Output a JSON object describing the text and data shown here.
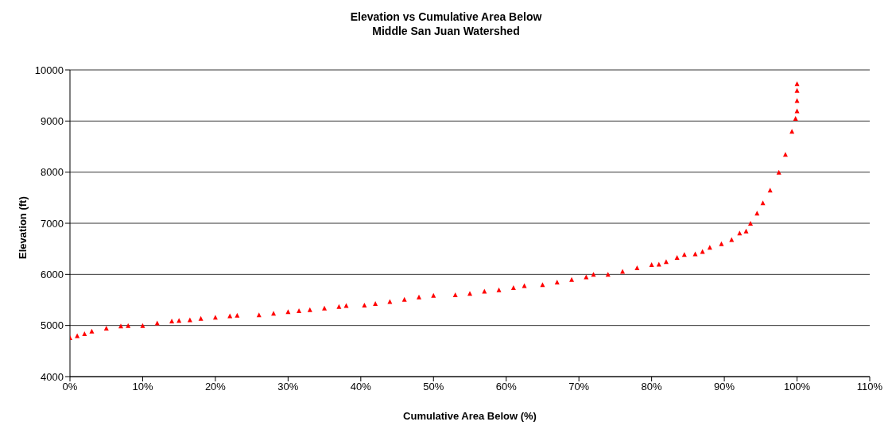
{
  "chart_data": {
    "type": "scatter",
    "title": "Elevation vs Cumulative Area Below",
    "subtitle": "Middle San Juan Watershed",
    "xlabel": "Cumulative Area Below (%)",
    "ylabel": "Elevation (ft)",
    "xlim": [
      0,
      110
    ],
    "xticks": [
      {
        "value": 0,
        "label": "0%"
      },
      {
        "value": 10,
        "label": "10%"
      },
      {
        "value": 20,
        "label": "20%"
      },
      {
        "value": 30,
        "label": "30%"
      },
      {
        "value": 40,
        "label": "40%"
      },
      {
        "value": 50,
        "label": "50%"
      },
      {
        "value": 60,
        "label": "60%"
      },
      {
        "value": 70,
        "label": "70%"
      },
      {
        "value": 80,
        "label": "80%"
      },
      {
        "value": 90,
        "label": "90%"
      },
      {
        "value": 100,
        "label": "100%"
      },
      {
        "value": 110,
        "label": "110%"
      }
    ],
    "ylim": [
      4000,
      10000
    ],
    "yticks": [
      4000,
      5000,
      6000,
      7000,
      8000,
      9000,
      10000
    ],
    "grid": "y",
    "marker": "triangle",
    "series": [
      {
        "color": "#ff0000",
        "x": [
          0,
          1,
          2,
          3,
          5,
          7,
          8,
          10,
          12,
          14,
          15,
          16.5,
          18,
          20,
          22,
          23,
          26,
          28,
          30,
          31.5,
          33,
          35,
          37,
          38,
          40.5,
          42,
          44,
          46,
          48,
          50,
          53,
          55,
          57,
          59,
          61,
          62.5,
          65,
          67,
          69,
          71,
          72,
          74,
          76,
          78,
          80,
          81,
          82,
          83.5,
          84.5,
          86,
          87,
          88,
          89.6,
          91,
          92.1,
          93,
          93.6,
          94.5,
          95.3,
          96.3,
          97.5,
          98.4,
          99.3,
          99.8,
          100,
          100,
          100,
          100
        ],
        "values": [
          4760,
          4800,
          4840,
          4890,
          4950,
          4990,
          5000,
          5000,
          5050,
          5090,
          5100,
          5110,
          5140,
          5160,
          5190,
          5200,
          5210,
          5240,
          5270,
          5290,
          5310,
          5340,
          5370,
          5390,
          5400,
          5430,
          5470,
          5510,
          5560,
          5590,
          5600,
          5630,
          5670,
          5700,
          5740,
          5780,
          5800,
          5850,
          5900,
          5950,
          6000,
          6000,
          6060,
          6130,
          6190,
          6200,
          6250,
          6330,
          6390,
          6400,
          6450,
          6530,
          6600,
          6680,
          6810,
          6850,
          7000,
          7200,
          7400,
          7650,
          8000,
          8350,
          8800,
          9050,
          9200,
          9400,
          9600,
          9730
        ]
      }
    ]
  }
}
